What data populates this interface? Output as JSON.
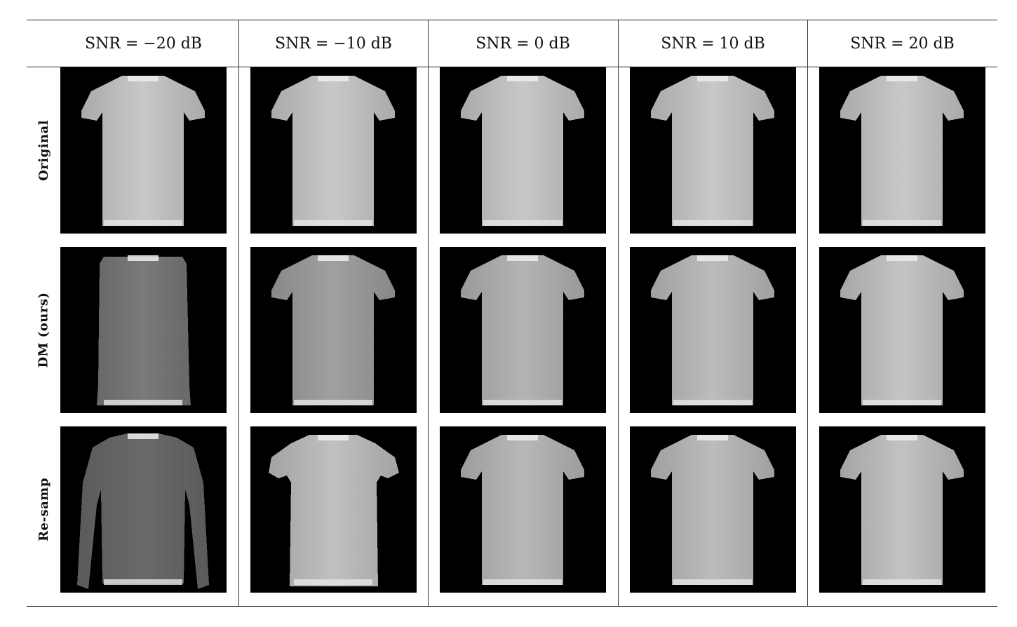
{
  "columns": [
    {
      "label": "SNR = −20 dB"
    },
    {
      "label": "SNR = −10 dB"
    },
    {
      "label": "SNR = 0 dB"
    },
    {
      "label": "SNR = 10 dB"
    },
    {
      "label": "SNR = 20 dB"
    }
  ],
  "rows": [
    {
      "label": "Original"
    },
    {
      "label": "DM (ours)"
    },
    {
      "label": "Re-samp"
    }
  ],
  "images": [
    [
      "tshirt",
      "tshirt",
      "tshirt",
      "tshirt",
      "tshirt"
    ],
    [
      "long-shirt",
      "tshirt",
      "tshirt",
      "tshirt",
      "tshirt"
    ],
    [
      "long-sleeve-shirt",
      "blouse",
      "tshirt",
      "tshirt",
      "tshirt"
    ]
  ]
}
